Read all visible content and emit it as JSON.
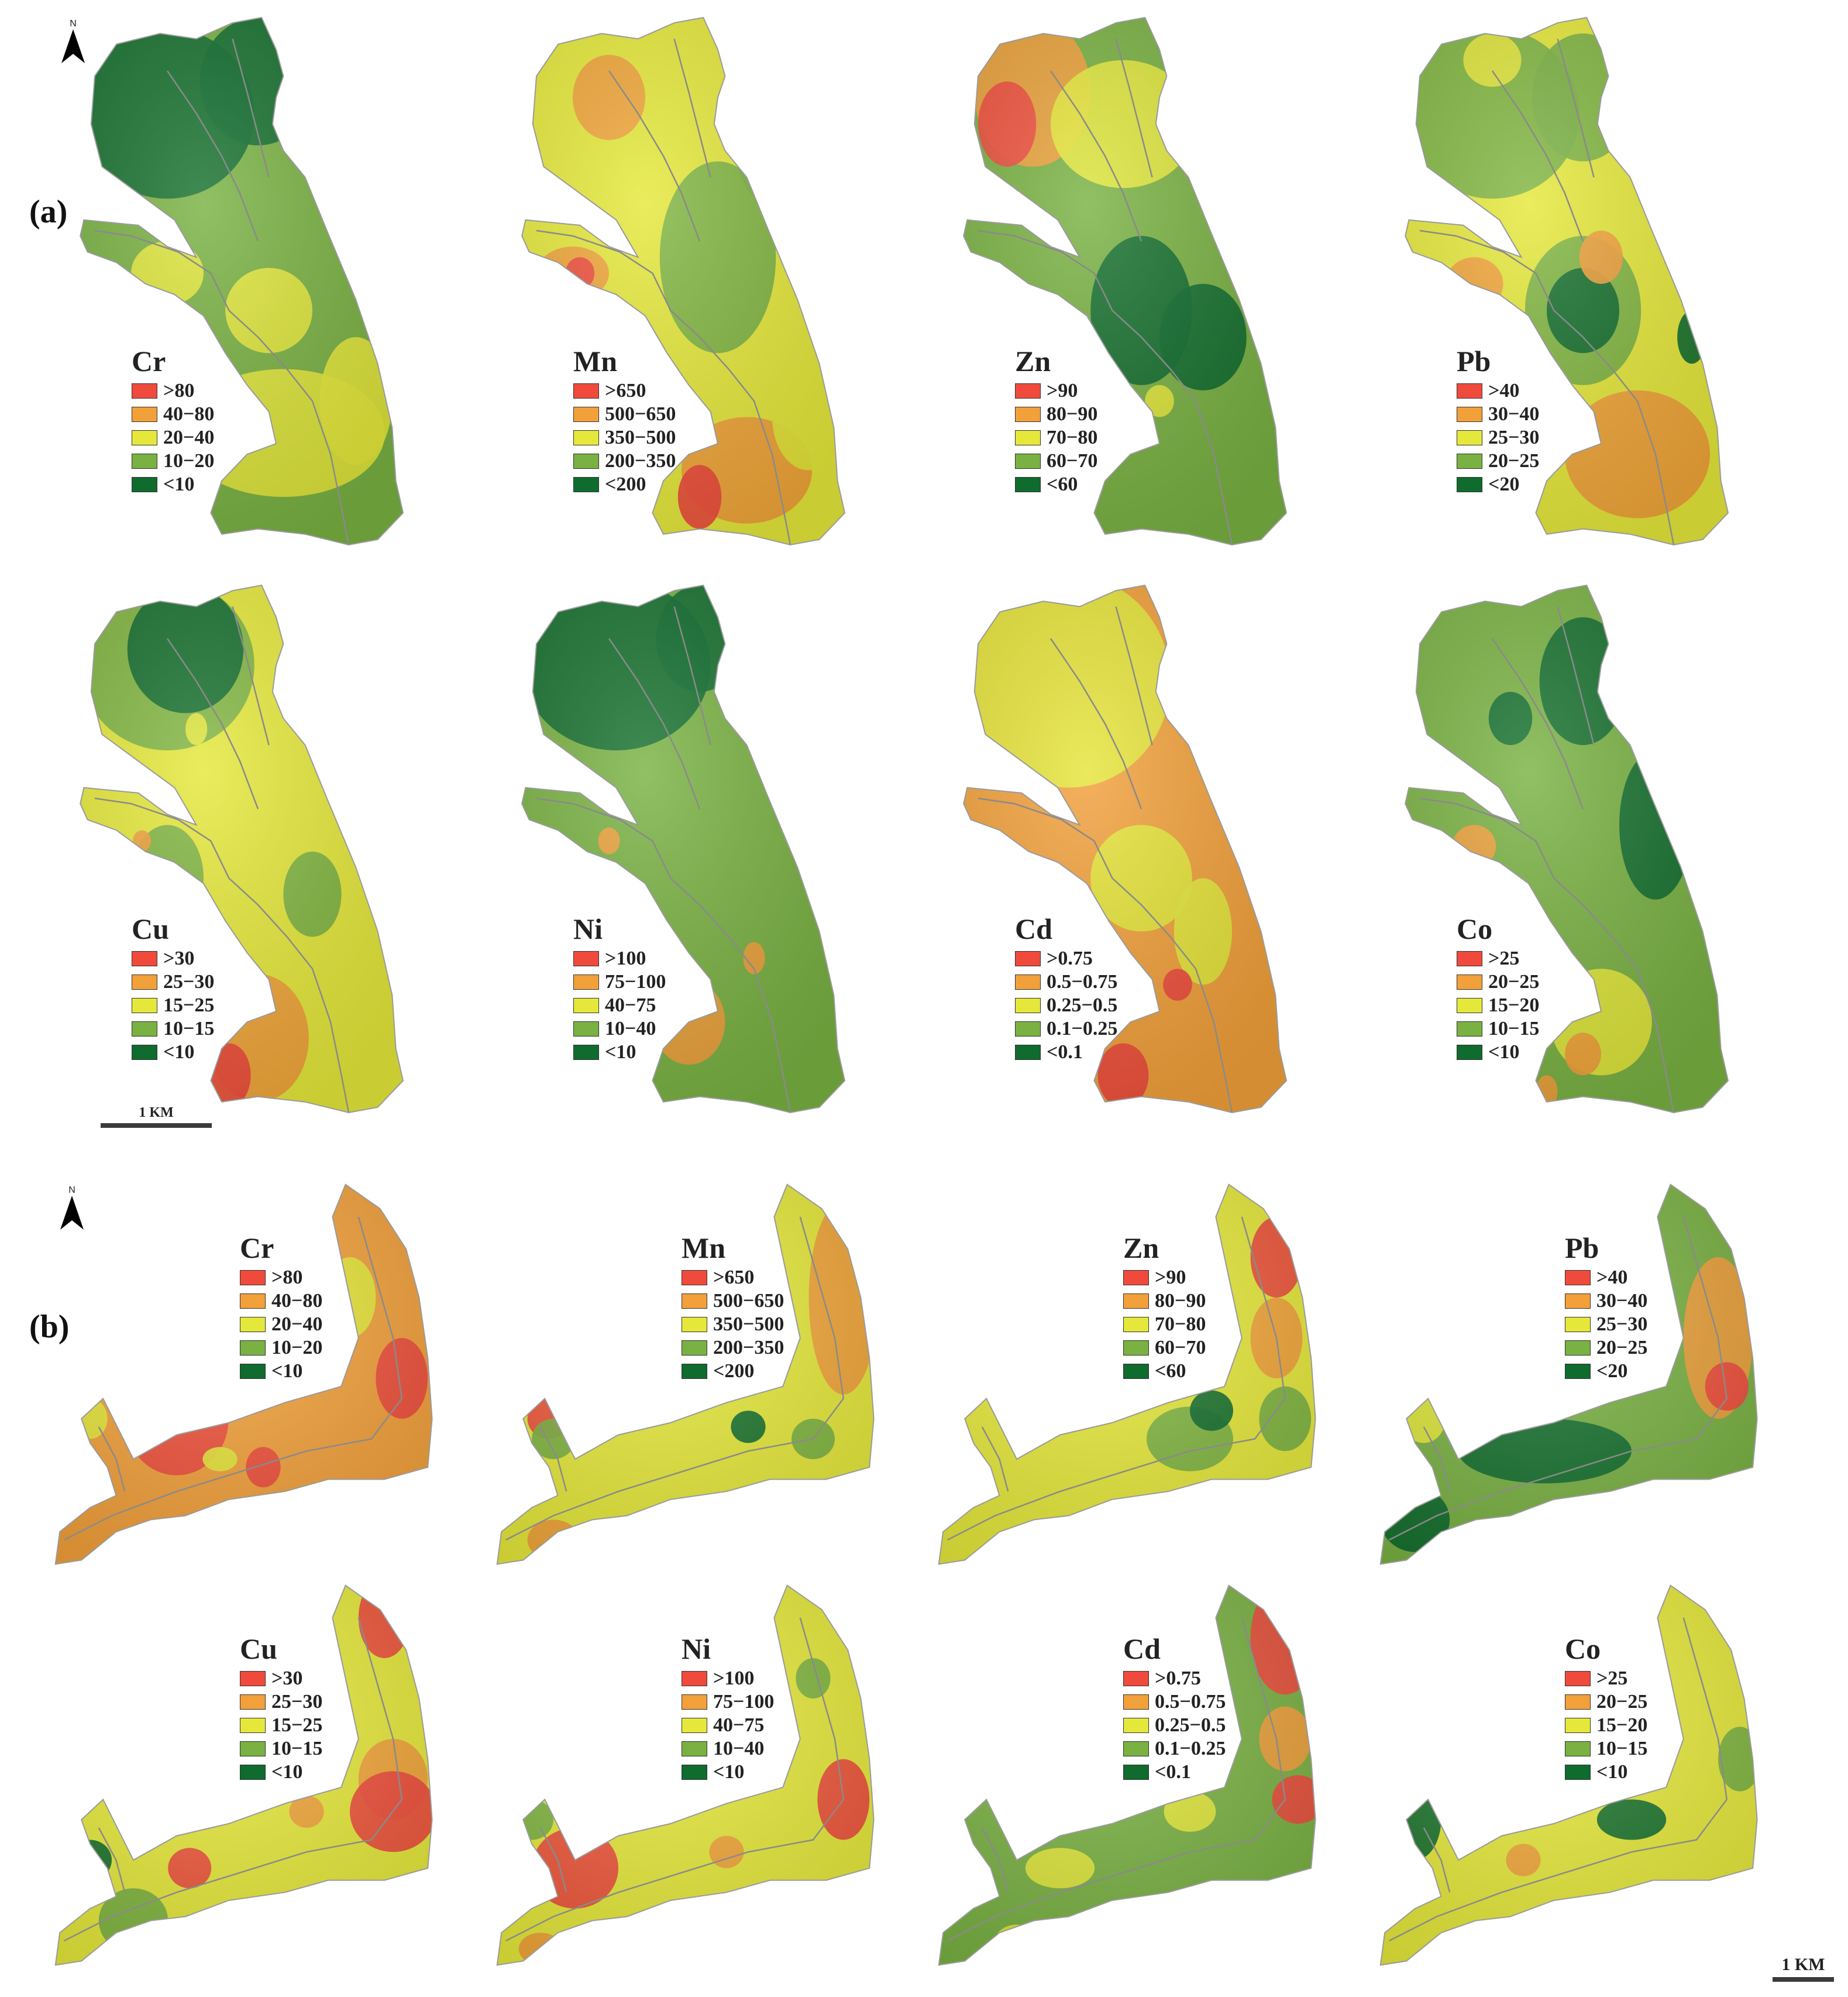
{
  "colors": {
    "class1": "#ef4a3c",
    "class2": "#f2a03a",
    "class3": "#e5e83a",
    "class4": "#79b142",
    "class5": "#0f6b2e",
    "river": "#8a8a8a"
  },
  "north_arrow": {
    "letter": "N"
  },
  "panels": [
    {
      "label": "(a)",
      "maps": [
        {
          "element": "Cr",
          "classes": [
            ">80",
            "40−80",
            "20−40",
            "10−20",
            "<10"
          ],
          "base": 4,
          "patches": [
            [
              0.3,
              0.18,
              0.24,
              0.16,
              5
            ],
            [
              0.55,
              0.12,
              0.16,
              0.12,
              5
            ],
            [
              0.3,
              0.48,
              0.1,
              0.06,
              3
            ],
            [
              0.58,
              0.55,
              0.12,
              0.08,
              3
            ],
            [
              0.62,
              0.78,
              0.28,
              0.12,
              3
            ],
            [
              0.82,
              0.72,
              0.1,
              0.12,
              3
            ]
          ]
        },
        {
          "element": "Mn",
          "classes": [
            ">650",
            "500−650",
            "350−500",
            "200−350",
            "<200"
          ],
          "base": 3,
          "patches": [
            [
              0.3,
              0.18,
              0.24,
              0.16,
              3
            ],
            [
              0.3,
              0.15,
              0.1,
              0.08,
              2
            ],
            [
              0.2,
              0.48,
              0.1,
              0.05,
              2
            ],
            [
              0.22,
              0.48,
              0.04,
              0.03,
              1
            ],
            [
              0.6,
              0.45,
              0.16,
              0.18,
              4
            ],
            [
              0.75,
              0.25,
              0.1,
              0.1,
              4
            ],
            [
              0.68,
              0.85,
              0.18,
              0.1,
              2
            ],
            [
              0.55,
              0.9,
              0.06,
              0.06,
              1
            ],
            [
              0.85,
              0.75,
              0.1,
              0.1,
              3
            ]
          ]
        },
        {
          "element": "Zn",
          "classes": [
            ">90",
            "80−90",
            "70−80",
            "60−70",
            "<60"
          ],
          "base": 4,
          "patches": [
            [
              0.25,
              0.14,
              0.16,
              0.14,
              2
            ],
            [
              0.18,
              0.2,
              0.08,
              0.08,
              1
            ],
            [
              0.5,
              0.2,
              0.2,
              0.12,
              3
            ],
            [
              0.55,
              0.55,
              0.14,
              0.14,
              5
            ],
            [
              0.72,
              0.6,
              0.12,
              0.1,
              5
            ],
            [
              0.75,
              0.85,
              0.2,
              0.1,
              4
            ],
            [
              0.6,
              0.72,
              0.04,
              0.03,
              3
            ]
          ]
        },
        {
          "element": "Pb",
          "classes": [
            ">40",
            "30−40",
            "25−30",
            "20−25",
            "<20"
          ],
          "base": 3,
          "patches": [
            [
              0.3,
              0.18,
              0.24,
              0.16,
              4
            ],
            [
              0.3,
              0.08,
              0.08,
              0.05,
              3
            ],
            [
              0.55,
              0.15,
              0.14,
              0.12,
              4
            ],
            [
              0.55,
              0.55,
              0.16,
              0.14,
              4
            ],
            [
              0.55,
              0.55,
              0.1,
              0.08,
              5
            ],
            [
              0.25,
              0.5,
              0.08,
              0.05,
              2
            ],
            [
              0.7,
              0.82,
              0.2,
              0.12,
              2
            ],
            [
              0.6,
              0.45,
              0.06,
              0.05,
              2
            ],
            [
              0.85,
              0.6,
              0.04,
              0.05,
              5
            ]
          ]
        },
        {
          "element": "Cu",
          "classes": [
            ">30",
            "25−30",
            "15−25",
            "10−15",
            "<10"
          ],
          "base": 3,
          "patches": [
            [
              0.3,
              0.15,
              0.24,
              0.16,
              4
            ],
            [
              0.35,
              0.12,
              0.16,
              0.12,
              5
            ],
            [
              0.3,
              0.55,
              0.1,
              0.1,
              4
            ],
            [
              0.7,
              0.58,
              0.08,
              0.08,
              4
            ],
            [
              0.55,
              0.85,
              0.14,
              0.12,
              2
            ],
            [
              0.47,
              0.92,
              0.06,
              0.06,
              1
            ],
            [
              0.38,
              0.27,
              0.03,
              0.03,
              3
            ],
            [
              0.23,
              0.48,
              0.025,
              0.02,
              2
            ]
          ]
        },
        {
          "element": "Ni",
          "classes": [
            ">100",
            "75−100",
            "40−75",
            "10−40",
            "<10"
          ],
          "base": 4,
          "patches": [
            [
              0.32,
              0.15,
              0.26,
              0.16,
              5
            ],
            [
              0.55,
              0.1,
              0.12,
              0.1,
              5
            ],
            [
              0.52,
              0.82,
              0.1,
              0.08,
              2
            ],
            [
              0.7,
              0.7,
              0.03,
              0.03,
              2
            ],
            [
              0.3,
              0.48,
              0.03,
              0.025,
              2
            ]
          ]
        },
        {
          "element": "Cd",
          "classes": [
            ">0.75",
            "0.5−0.75",
            "0.25−0.5",
            "0.1−0.25",
            "<0.1"
          ],
          "base": 2,
          "patches": [
            [
              0.35,
              0.18,
              0.28,
              0.2,
              3
            ],
            [
              0.55,
              0.55,
              0.14,
              0.1,
              3
            ],
            [
              0.72,
              0.65,
              0.08,
              0.1,
              3
            ],
            [
              0.65,
              0.75,
              0.04,
              0.03,
              1
            ],
            [
              0.5,
              0.92,
              0.07,
              0.06,
              1
            ]
          ]
        },
        {
          "element": "Co",
          "classes": [
            ">25",
            "20−25",
            "15−20",
            "10−15",
            "<10"
          ],
          "base": 4,
          "patches": [
            [
              0.55,
              0.18,
              0.12,
              0.12,
              5
            ],
            [
              0.75,
              0.45,
              0.1,
              0.14,
              5
            ],
            [
              0.35,
              0.25,
              0.06,
              0.05,
              5
            ],
            [
              0.25,
              0.49,
              0.06,
              0.04,
              2
            ],
            [
              0.6,
              0.82,
              0.14,
              0.1,
              3
            ],
            [
              0.55,
              0.88,
              0.05,
              0.04,
              2
            ],
            [
              0.45,
              0.95,
              0.03,
              0.03,
              2
            ]
          ]
        }
      ]
    },
    {
      "label": "(b)",
      "maps": [
        {
          "element": "Cr",
          "classes": [
            ">80",
            "40−80",
            "20−40",
            "10−20",
            "<10"
          ],
          "base": 2,
          "patches": [
            [
              0.3,
              0.6,
              0.12,
              0.14,
              1
            ],
            [
              0.82,
              0.5,
              0.06,
              0.1,
              1
            ],
            [
              0.5,
              0.72,
              0.04,
              0.05,
              1
            ],
            [
              0.7,
              0.3,
              0.06,
              0.1,
              3
            ],
            [
              0.1,
              0.6,
              0.04,
              0.05,
              3
            ],
            [
              0.4,
              0.7,
              0.04,
              0.03,
              3
            ]
          ]
        },
        {
          "element": "Mn",
          "classes": [
            ">650",
            "500−650",
            "350−500",
            "200−350",
            "<200"
          ],
          "base": 3,
          "patches": [
            [
              0.82,
              0.3,
              0.08,
              0.24,
              2
            ],
            [
              0.14,
              0.6,
              0.05,
              0.05,
              1
            ],
            [
              0.15,
              0.65,
              0.05,
              0.05,
              4
            ],
            [
              0.6,
              0.62,
              0.04,
              0.04,
              5
            ],
            [
              0.75,
              0.65,
              0.05,
              0.05,
              4
            ],
            [
              0.15,
              0.9,
              0.06,
              0.05,
              2
            ]
          ]
        },
        {
          "element": "Zn",
          "classes": [
            ">90",
            "80−90",
            "70−80",
            "60−70",
            "<60"
          ],
          "base": 3,
          "patches": [
            [
              0.8,
              0.2,
              0.06,
              0.1,
              1
            ],
            [
              0.8,
              0.4,
              0.06,
              0.1,
              2
            ],
            [
              0.6,
              0.65,
              0.1,
              0.08,
              4
            ],
            [
              0.65,
              0.58,
              0.05,
              0.05,
              5
            ],
            [
              0.82,
              0.6,
              0.06,
              0.08,
              4
            ]
          ]
        },
        {
          "element": "Pb",
          "classes": [
            ">40",
            "30−40",
            "25−30",
            "20−25",
            "<20"
          ],
          "base": 4,
          "patches": [
            [
              0.8,
              0.4,
              0.08,
              0.2,
              2
            ],
            [
              0.82,
              0.52,
              0.05,
              0.06,
              1
            ],
            [
              0.4,
              0.68,
              0.2,
              0.08,
              5
            ],
            [
              0.1,
              0.85,
              0.08,
              0.08,
              5
            ],
            [
              0.12,
              0.6,
              0.05,
              0.06,
              3
            ]
          ]
        },
        {
          "element": "Cu",
          "classes": [
            ">30",
            "25−30",
            "15−25",
            "10−15",
            "<10"
          ],
          "base": 3,
          "patches": [
            [
              0.78,
              0.1,
              0.06,
              0.1,
              1
            ],
            [
              0.8,
              0.5,
              0.08,
              0.1,
              2
            ],
            [
              0.8,
              0.58,
              0.1,
              0.1,
              1
            ],
            [
              0.6,
              0.58,
              0.04,
              0.04,
              2
            ],
            [
              0.1,
              0.7,
              0.05,
              0.05,
              5
            ],
            [
              0.33,
              0.72,
              0.05,
              0.05,
              1
            ],
            [
              0.2,
              0.85,
              0.08,
              0.08,
              4
            ]
          ]
        },
        {
          "element": "Ni",
          "classes": [
            ">100",
            "75−100",
            "40−75",
            "10−40",
            "<10"
          ],
          "base": 3,
          "patches": [
            [
              0.2,
              0.72,
              0.1,
              0.1,
              1
            ],
            [
              0.82,
              0.55,
              0.06,
              0.1,
              1
            ],
            [
              0.55,
              0.68,
              0.04,
              0.04,
              2
            ],
            [
              0.1,
              0.6,
              0.05,
              0.05,
              4
            ],
            [
              0.75,
              0.25,
              0.04,
              0.05,
              4
            ],
            [
              0.12,
              0.92,
              0.05,
              0.04,
              2
            ]
          ]
        },
        {
          "element": "Cd",
          "classes": [
            ">0.75",
            "0.5−0.75",
            "0.25−0.5",
            "0.1−0.25",
            "<0.1"
          ],
          "base": 4,
          "patches": [
            [
              0.82,
              0.15,
              0.08,
              0.14,
              1
            ],
            [
              0.82,
              0.4,
              0.06,
              0.08,
              2
            ],
            [
              0.85,
              0.55,
              0.06,
              0.06,
              1
            ],
            [
              0.05,
              0.65,
              0.04,
              0.05,
              1
            ],
            [
              0.6,
              0.58,
              0.06,
              0.05,
              3
            ],
            [
              0.3,
              0.72,
              0.08,
              0.05,
              3
            ],
            [
              0.2,
              0.9,
              0.05,
              0.04,
              3
            ]
          ]
        },
        {
          "element": "Co",
          "classes": [
            ">25",
            "20−25",
            "15−20",
            "10−15",
            "<10"
          ],
          "base": 3,
          "patches": [
            [
              0.1,
              0.6,
              0.06,
              0.1,
              5
            ],
            [
              0.6,
              0.6,
              0.08,
              0.05,
              5
            ],
            [
              0.85,
              0.45,
              0.05,
              0.08,
              4
            ],
            [
              0.35,
              0.7,
              0.04,
              0.04,
              2
            ],
            [
              0.15,
              0.9,
              0.04,
              0.03,
              3
            ]
          ]
        }
      ]
    }
  ],
  "scale_bars": [
    {
      "label": "1 KM"
    },
    {
      "label": "1 KM"
    }
  ]
}
